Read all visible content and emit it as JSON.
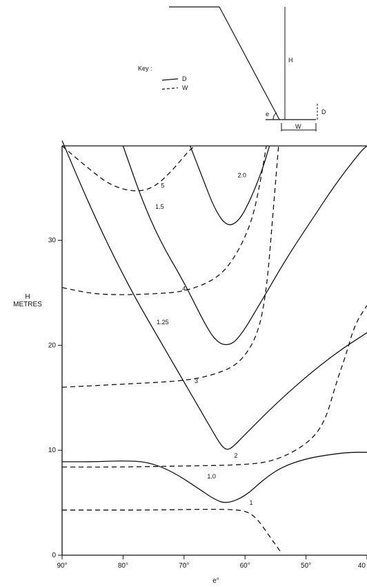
{
  "chart_data": {
    "type": "line",
    "title": "",
    "xlabel": "e°",
    "ylabel": "H METRES",
    "ylabel_lines": [
      "H",
      "METRES"
    ],
    "xlim": [
      90,
      40
    ],
    "ylim": [
      0,
      39
    ],
    "x_ticks": [
      90,
      80,
      70,
      60,
      50,
      40
    ],
    "x_tick_labels": [
      "90°",
      "80°",
      "70°",
      "60°",
      "50°",
      "40"
    ],
    "y_ticks": [
      0,
      10,
      20,
      30
    ],
    "y_tick_labels": [
      "0",
      "10",
      "20",
      "30"
    ],
    "grid": false,
    "legend": {
      "title": "Key :",
      "position": "top-left of diagram",
      "entries": [
        {
          "label": "D",
          "style": "solid"
        },
        {
          "label": "W",
          "style": "dashed"
        }
      ]
    },
    "diagram_labels": {
      "height": "H",
      "angle": "e",
      "depth": "D",
      "width": "W"
    },
    "series": [
      {
        "label": "1.0",
        "style": "solid",
        "label_at": [
          65.5,
          7.3
        ],
        "points": [
          [
            90,
            8.9
          ],
          [
            85,
            8.9
          ],
          [
            80,
            9.0
          ],
          [
            76,
            8.9
          ],
          [
            72,
            8.0
          ],
          [
            68,
            6.5
          ],
          [
            65,
            5.3
          ],
          [
            63,
            4.9
          ],
          [
            60,
            5.6
          ],
          [
            57,
            7.2
          ],
          [
            54,
            8.4
          ],
          [
            50,
            9.2
          ],
          [
            46,
            9.6
          ],
          [
            43,
            9.8
          ],
          [
            40,
            9.8
          ]
        ]
      },
      {
        "label": "1.25",
        "style": "solid",
        "label_at": [
          73.5,
          22.0
        ],
        "points": [
          [
            90,
            39.5
          ],
          [
            86,
            34
          ],
          [
            82,
            29
          ],
          [
            78,
            24.5
          ],
          [
            74,
            20.5
          ],
          [
            70,
            16.5
          ],
          [
            66,
            12.5
          ],
          [
            64,
            10.5
          ],
          [
            63,
            10.0
          ],
          [
            62,
            10.3
          ],
          [
            60,
            11.5
          ],
          [
            55,
            14.4
          ],
          [
            50,
            17.0
          ],
          [
            45,
            19.3
          ],
          [
            40,
            21.2
          ]
        ]
      },
      {
        "label": "1.5",
        "style": "solid",
        "label_at": [
          74.0,
          33.0
        ],
        "points": [
          [
            80,
            39
          ],
          [
            77,
            34
          ],
          [
            74,
            30
          ],
          [
            70,
            26
          ],
          [
            67,
            22.5
          ],
          [
            65,
            20.5
          ],
          [
            63,
            19.9
          ],
          [
            61,
            20.6
          ],
          [
            57,
            24.5
          ],
          [
            53,
            28.5
          ],
          [
            49,
            32.0
          ],
          [
            45,
            35.5
          ],
          [
            41,
            38.5
          ],
          [
            40,
            39.0
          ]
        ]
      },
      {
        "label": "2.0",
        "style": "solid",
        "label_at": [
          60.5,
          36.0
        ],
        "points": [
          [
            69,
            39
          ],
          [
            67,
            36
          ],
          [
            65,
            33
          ],
          [
            63,
            31.3
          ],
          [
            61,
            31.8
          ],
          [
            59,
            34
          ],
          [
            57,
            37.0
          ],
          [
            56,
            39
          ]
        ]
      },
      {
        "label": "1",
        "style": "dashed",
        "label_at": [
          59.0,
          4.8
        ],
        "points": [
          [
            90,
            4.3
          ],
          [
            85,
            4.3
          ],
          [
            75,
            4.3
          ],
          [
            65,
            4.4
          ],
          [
            60,
            4.3
          ],
          [
            58,
            3.5
          ],
          [
            56,
            1.8
          ],
          [
            54,
            0.2
          ]
        ]
      },
      {
        "label": "2",
        "style": "dashed",
        "label_at": [
          61.5,
          9.3
        ],
        "points": [
          [
            90,
            8.4
          ],
          [
            80,
            8.4
          ],
          [
            70,
            8.5
          ],
          [
            60,
            8.6
          ],
          [
            55,
            9.0
          ],
          [
            50,
            10.5
          ],
          [
            47,
            12.5
          ],
          [
            45,
            16.5
          ],
          [
            43.5,
            19.0
          ],
          [
            42,
            22.0
          ],
          [
            40,
            23.8
          ]
        ]
      },
      {
        "label": "3",
        "style": "dashed",
        "label_at": [
          68.0,
          16.4
        ],
        "points": [
          [
            90,
            16.0
          ],
          [
            80,
            16.3
          ],
          [
            70,
            16.6
          ],
          [
            65,
            17.2
          ],
          [
            61,
            18.2
          ],
          [
            58,
            20.8
          ],
          [
            56.5,
            25.0
          ],
          [
            55.5,
            32.0
          ],
          [
            54.5,
            39.0
          ]
        ]
      },
      {
        "label": "4",
        "style": "dashed",
        "label_at": [
          70.0,
          25.2
        ],
        "points": [
          [
            90,
            25.5
          ],
          [
            85,
            24.9
          ],
          [
            80,
            24.8
          ],
          [
            75,
            24.9
          ],
          [
            70,
            25.1
          ],
          [
            65,
            26.2
          ],
          [
            62,
            28.0
          ],
          [
            59,
            31.5
          ],
          [
            57.5,
            35.5
          ],
          [
            56.5,
            39.0
          ]
        ]
      },
      {
        "label": "5",
        "style": "dashed",
        "label_at": [
          73.5,
          35.0
        ],
        "points": [
          [
            90,
            39
          ],
          [
            86,
            37.0
          ],
          [
            82,
            35.2
          ],
          [
            78,
            34.6
          ],
          [
            75,
            35.0
          ],
          [
            72,
            36.6
          ],
          [
            69,
            38.7
          ],
          [
            68,
            39.0
          ]
        ]
      }
    ]
  }
}
